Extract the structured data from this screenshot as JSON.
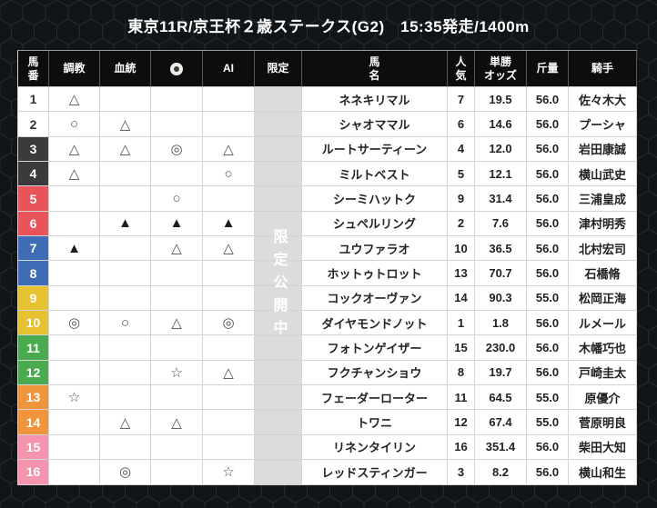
{
  "title": "東京11R/京王杯２歳ステークス(G2)　15:35発走/1400m",
  "table": {
    "headers": {
      "umaban": "馬\n番",
      "chokyo": "調教",
      "kettou": "血統",
      "icon_name": "circle-badge-icon",
      "ai": "AI",
      "gentei": "限定",
      "bamei": "馬\n名",
      "ninki": "人\n気",
      "odds": "単勝\nオッズ",
      "kinryo": "斤量",
      "kishu": "騎手"
    },
    "limited_label": "限定公開中",
    "rows": [
      {
        "num": "1",
        "bracket": "white",
        "chokyo": "△",
        "kettou": "",
        "icon": "",
        "ai": "",
        "name": "ネネキリマル",
        "ninki": "7",
        "odds": "19.5",
        "kinryo": "56.0",
        "jockey": "佐々木大"
      },
      {
        "num": "2",
        "bracket": "white",
        "chokyo": "○",
        "kettou": "△",
        "icon": "",
        "ai": "",
        "name": "シャオママル",
        "ninki": "6",
        "odds": "14.6",
        "kinryo": "56.0",
        "jockey": "プーシャ"
      },
      {
        "num": "3",
        "bracket": "black",
        "chokyo": "△",
        "kettou": "△",
        "icon": "◎",
        "ai": "△",
        "name": "ルートサーティーン",
        "ninki": "4",
        "odds": "12.0",
        "kinryo": "56.0",
        "jockey": "岩田康誠"
      },
      {
        "num": "4",
        "bracket": "black",
        "chokyo": "△",
        "kettou": "",
        "icon": "",
        "ai": "○",
        "name": "ミルトベスト",
        "ninki": "5",
        "odds": "12.1",
        "kinryo": "56.0",
        "jockey": "横山武史"
      },
      {
        "num": "5",
        "bracket": "red",
        "chokyo": "",
        "kettou": "",
        "icon": "○",
        "ai": "",
        "name": "シーミハットク",
        "ninki": "9",
        "odds": "31.4",
        "kinryo": "56.0",
        "jockey": "三浦皇成"
      },
      {
        "num": "6",
        "bracket": "red",
        "chokyo": "",
        "kettou": "▲",
        "icon": "▲",
        "ai": "▲",
        "name": "シュペルリング",
        "ninki": "2",
        "odds": "7.6",
        "kinryo": "56.0",
        "jockey": "津村明秀"
      },
      {
        "num": "7",
        "bracket": "blue",
        "chokyo": "▲",
        "kettou": "",
        "icon": "△",
        "ai": "△",
        "name": "ユウファラオ",
        "ninki": "10",
        "odds": "36.5",
        "kinryo": "56.0",
        "jockey": "北村宏司"
      },
      {
        "num": "8",
        "bracket": "blue",
        "chokyo": "",
        "kettou": "",
        "icon": "",
        "ai": "",
        "name": "ホットゥトロット",
        "ninki": "13",
        "odds": "70.7",
        "kinryo": "56.0",
        "jockey": "石橋脩"
      },
      {
        "num": "9",
        "bracket": "yellow",
        "chokyo": "",
        "kettou": "",
        "icon": "",
        "ai": "",
        "name": "コックオーヴァン",
        "ninki": "14",
        "odds": "90.3",
        "kinryo": "55.0",
        "jockey": "松岡正海"
      },
      {
        "num": "10",
        "bracket": "yellow",
        "chokyo": "◎",
        "kettou": "○",
        "icon": "△",
        "ai": "◎",
        "name": "ダイヤモンドノット",
        "ninki": "1",
        "odds": "1.8",
        "kinryo": "56.0",
        "jockey": "ルメール"
      },
      {
        "num": "11",
        "bracket": "green",
        "chokyo": "",
        "kettou": "",
        "icon": "",
        "ai": "",
        "name": "フォトンゲイザー",
        "ninki": "15",
        "odds": "230.0",
        "kinryo": "56.0",
        "jockey": "木幡巧也"
      },
      {
        "num": "12",
        "bracket": "green",
        "chokyo": "",
        "kettou": "",
        "icon": "☆",
        "ai": "△",
        "name": "フクチャンショウ",
        "ninki": "8",
        "odds": "19.7",
        "kinryo": "56.0",
        "jockey": "戸崎圭太"
      },
      {
        "num": "13",
        "bracket": "orange",
        "chokyo": "☆",
        "kettou": "",
        "icon": "",
        "ai": "",
        "name": "フェーダーローター",
        "ninki": "11",
        "odds": "64.5",
        "kinryo": "55.0",
        "jockey": "原優介"
      },
      {
        "num": "14",
        "bracket": "orange",
        "chokyo": "",
        "kettou": "△",
        "icon": "△",
        "ai": "",
        "name": "トワニ",
        "ninki": "12",
        "odds": "67.4",
        "kinryo": "55.0",
        "jockey": "菅原明良"
      },
      {
        "num": "15",
        "bracket": "pink",
        "chokyo": "",
        "kettou": "",
        "icon": "",
        "ai": "",
        "name": "リネンタイリン",
        "ninki": "16",
        "odds": "351.4",
        "kinryo": "56.0",
        "jockey": "柴田大知"
      },
      {
        "num": "16",
        "bracket": "pink",
        "chokyo": "",
        "kettou": "◎",
        "icon": "",
        "ai": "☆",
        "name": "レッドスティンガー",
        "ninki": "3",
        "odds": "8.2",
        "kinryo": "56.0",
        "jockey": "横山和生"
      }
    ]
  },
  "colors": {
    "background": "#0a0d0e",
    "hex_fill": "#111518",
    "hex_line": "#242c2f",
    "header_bg": "#0d0d0d",
    "header_text": "#ffffff",
    "cell_bg": "#ffffff",
    "grid_line": "#d4d4d4",
    "limited_bg": "#dcdcdc",
    "mark": "#4d4d4d",
    "mark_filled": "#1e1e1e",
    "bracket_text": "#ffffff",
    "bracket_text_on_white": "#333333",
    "brackets": {
      "white": "#ffffff",
      "black": "#3b3b3b",
      "red": "#e8545a",
      "blue": "#3e6cb5",
      "yellow": "#e6c233",
      "green": "#4aaa50",
      "orange": "#f0953c",
      "pink": "#f494ae"
    }
  }
}
